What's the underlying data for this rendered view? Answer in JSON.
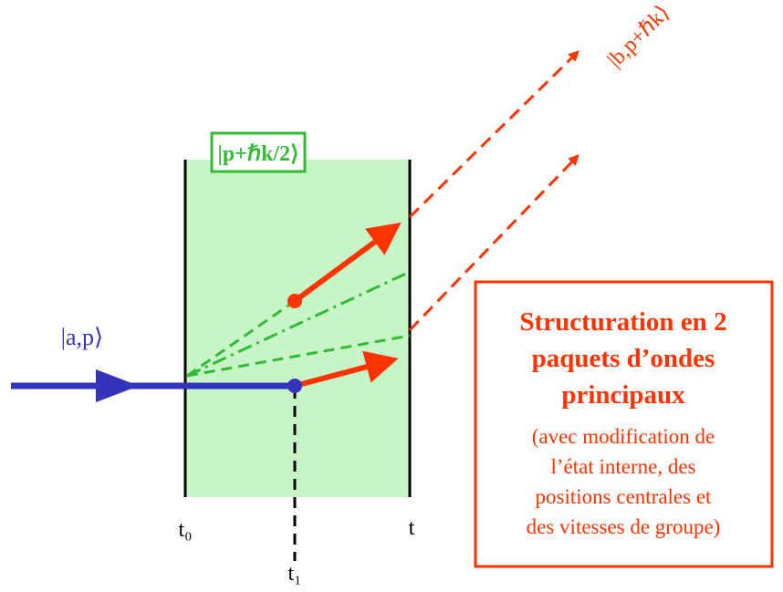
{
  "labels": {
    "state_b": "|b,p+ℏk⟩",
    "state_mid": "|p+ℏk/2⟩",
    "state_a": "|a,p⟩"
  },
  "times": {
    "t0": "t₀",
    "t": "t",
    "t1": "t₁"
  },
  "box": {
    "title_lines": [
      "Structuration en 2",
      "paquets d’ondes",
      "principaux"
    ],
    "note_lines": [
      "(avec modification de",
      "l’état interne, des",
      "positions centrales et",
      "des vitesses de groupe)"
    ]
  }
}
